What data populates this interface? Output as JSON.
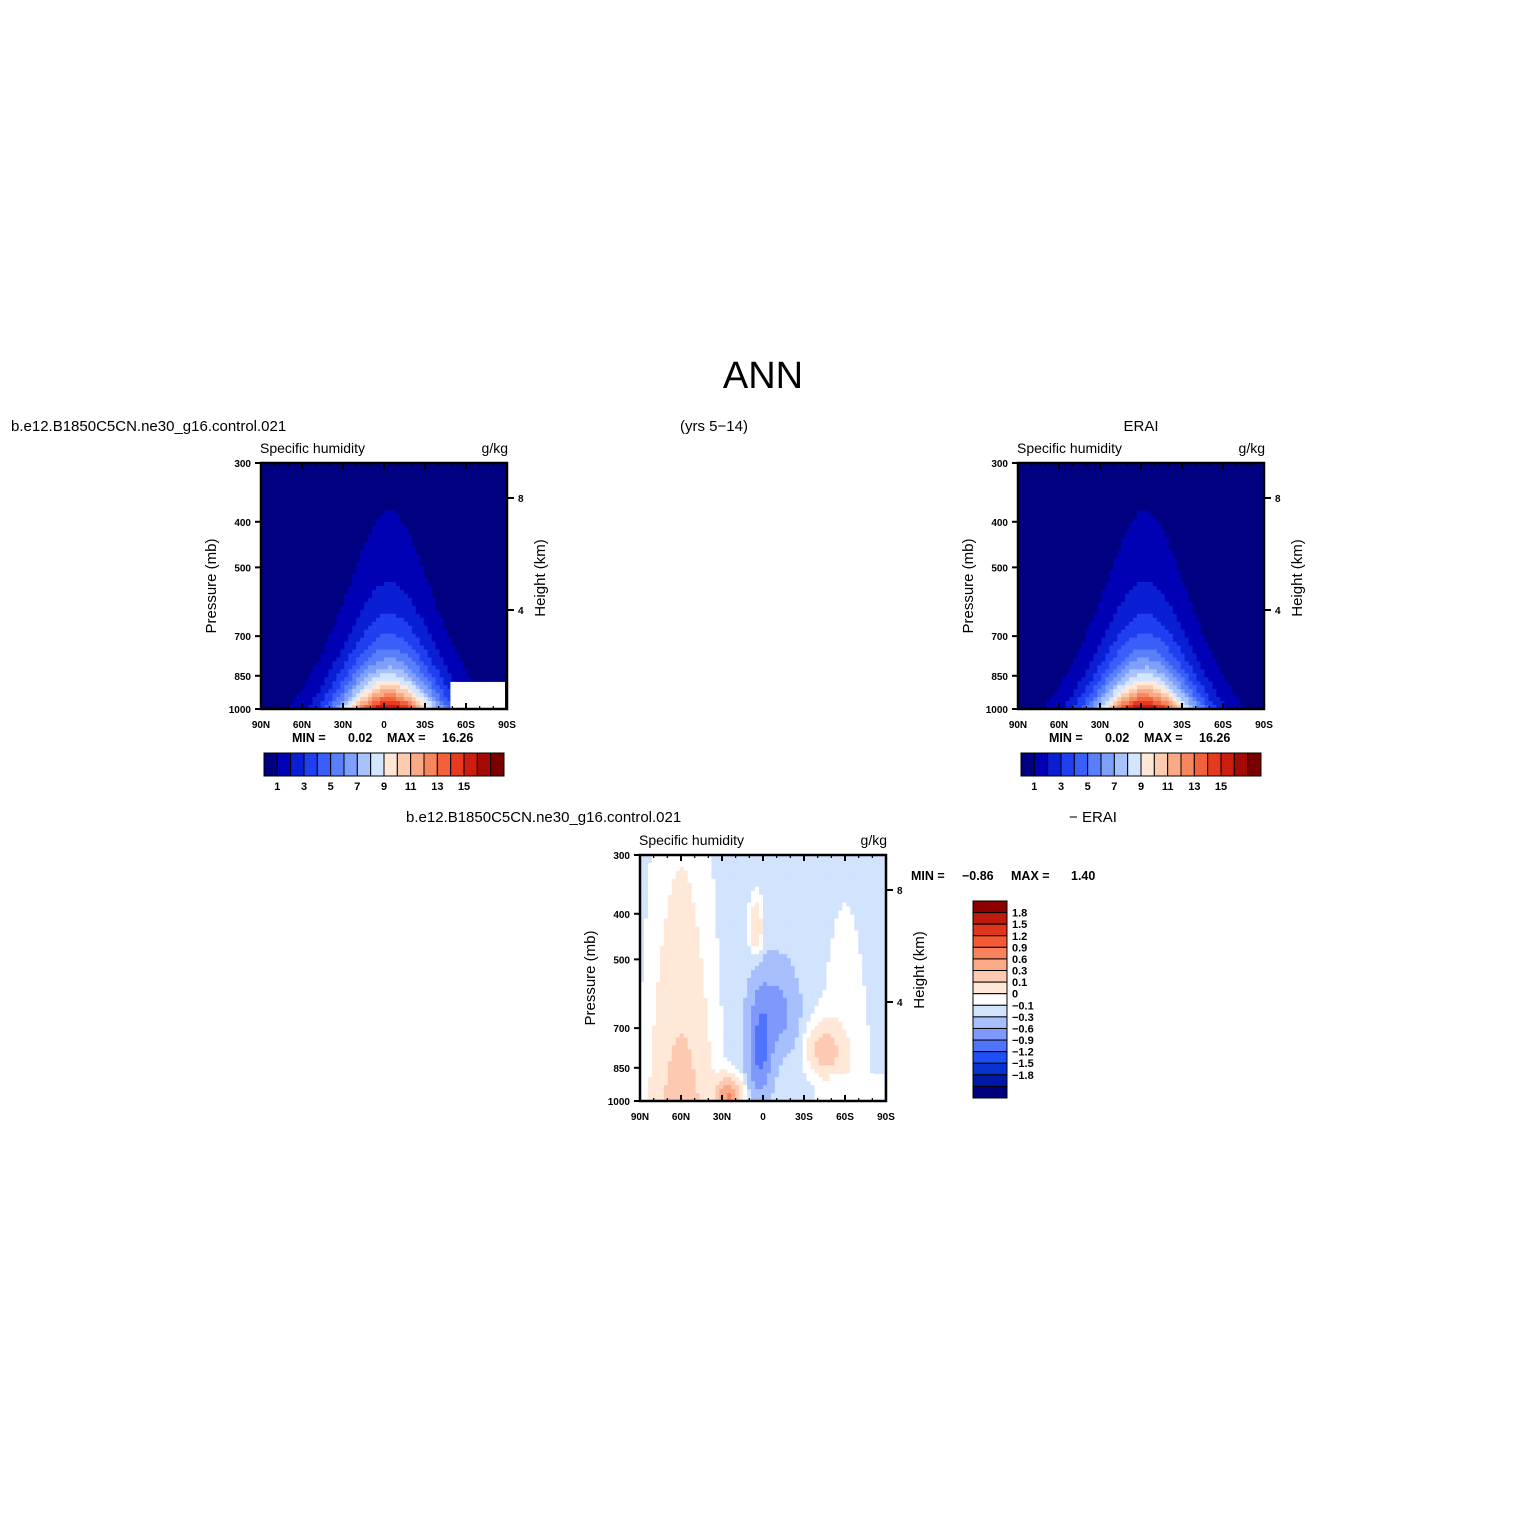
{
  "title": "ANN",
  "header_left": "b.e12.B1850C5CN.ne30_g16.control.021",
  "header_center": "(yrs 5−14)",
  "header_right": "ERAI",
  "diff_header_left": "b.e12.B1850C5CN.ne30_g16.control.021",
  "diff_header_right": "− ERAI",
  "colors": {
    "seq": [
      "#000080",
      "#0000b4",
      "#0a1fd4",
      "#1f3ff0",
      "#3a5ef8",
      "#5a7ffa",
      "#7ea0fb",
      "#a8c2fc",
      "#d4e6fd",
      "#ffe8d8",
      "#fdcbb0",
      "#fbaa86",
      "#f7865e",
      "#f2603c",
      "#e63a1f",
      "#cc1d0f",
      "#a30a05",
      "#7a0000"
    ],
    "diff": [
      "#00007f",
      "#0018a8",
      "#0632d0",
      "#1f50f5",
      "#4f74fb",
      "#7f98fb",
      "#a7bffc",
      "#d2e3fd",
      "#ffffff",
      "#ffe8d8",
      "#fdcab1",
      "#fbaa87",
      "#f7825c",
      "#f25a35",
      "#e0351c",
      "#bf1a0e",
      "#8e0000"
    ]
  },
  "chart_data": [
    {
      "type": "heatmap",
      "name": "model",
      "left_title": "Specific humidity",
      "right_title": "g/kg",
      "ylabel": "Pressure (mb)",
      "ylabel2": "Height (km)",
      "xticks": [
        "90N",
        "60N",
        "30N",
        "0",
        "30S",
        "60S",
        "90S"
      ],
      "yticks": [
        "300",
        "400",
        "500",
        "700",
        "850",
        "1000"
      ],
      "yticks2": [
        "8",
        "4"
      ],
      "min_label": "MIN =",
      "min_value": "0.02",
      "max_label": "MAX =",
      "max_value": "16.26",
      "colorbar_labels": [
        "1",
        "3",
        "5",
        "7",
        "9",
        "11",
        "13",
        "15"
      ],
      "levels": [
        1,
        2,
        3,
        4,
        5,
        6,
        7,
        8,
        9,
        10,
        11,
        12,
        13,
        14,
        15,
        16,
        17
      ],
      "peak": 16.26,
      "min": 0.02,
      "missing_region": "south-polar surface"
    },
    {
      "type": "heatmap",
      "name": "ERAI",
      "left_title": "Specific humidity",
      "right_title": "g/kg",
      "ylabel": "Pressure (mb)",
      "ylabel2": "Height (km)",
      "xticks": [
        "90N",
        "60N",
        "30N",
        "0",
        "30S",
        "60S",
        "90S"
      ],
      "yticks": [
        "300",
        "400",
        "500",
        "700",
        "850",
        "1000"
      ],
      "yticks2": [
        "8",
        "4"
      ],
      "min_label": "MIN =",
      "min_value": "0.02",
      "max_label": "MAX =",
      "max_value": "16.26",
      "colorbar_labels": [
        "1",
        "3",
        "5",
        "7",
        "9",
        "11",
        "13",
        "15"
      ],
      "levels": [
        1,
        2,
        3,
        4,
        5,
        6,
        7,
        8,
        9,
        10,
        11,
        12,
        13,
        14,
        15,
        16,
        17
      ],
      "peak": 16.26,
      "min": 0.02
    },
    {
      "type": "heatmap",
      "name": "difference",
      "left_title": "Specific humidity",
      "right_title": "g/kg",
      "ylabel": "Pressure (mb)",
      "ylabel2": "Height (km)",
      "xticks": [
        "90N",
        "60N",
        "30N",
        "0",
        "30S",
        "60S",
        "90S"
      ],
      "yticks": [
        "300",
        "400",
        "500",
        "700",
        "850",
        "1000"
      ],
      "yticks2": [
        "8",
        "4"
      ],
      "min_label": "MIN =",
      "min_value": "−0.86",
      "max_label": "MAX =",
      "max_value": "1.40",
      "colorbar_labels": [
        "1.8",
        "1.5",
        "1.2",
        "0.9",
        "0.6",
        "0.3",
        "0.1",
        "0",
        "−0.1",
        "−0.3",
        "−0.6",
        "−0.9",
        "−1.2",
        "−1.5",
        "−1.8"
      ],
      "levels": [
        -1.8,
        -1.5,
        -1.2,
        -0.9,
        -0.6,
        -0.3,
        -0.1,
        0,
        0.1,
        0.3,
        0.6,
        0.9,
        1.2,
        1.5,
        1.8
      ],
      "min": -0.86,
      "max": 1.4,
      "missing_region": "south-polar surface"
    }
  ]
}
